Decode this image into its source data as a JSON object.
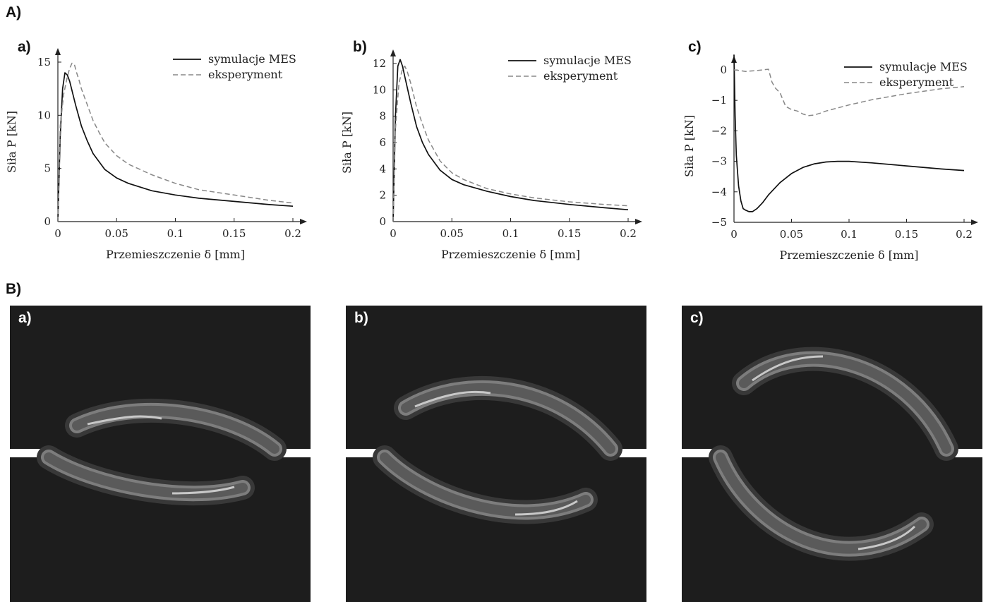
{
  "section_a_label": "A)",
  "section_b_label": "B)",
  "chart_data": [
    {
      "type": "line",
      "panel_label": "a)",
      "xlabel": "Przemieszczenie δ [mm]",
      "ylabel": "Siła P [kN]",
      "xlim": [
        0,
        0.2
      ],
      "ylim": [
        0,
        15
      ],
      "xticks": [
        0,
        0.05,
        0.1,
        0.15,
        0.2
      ],
      "xtick_labels": [
        "0",
        "0.05",
        "0.1",
        "0.15",
        "0.2"
      ],
      "yticks": [
        0,
        5,
        10,
        15
      ],
      "ytick_labels": [
        "0",
        "5",
        "10",
        "15"
      ],
      "legend_position": "top-right",
      "series": [
        {
          "name": "symulacje MES",
          "style": "solid",
          "color": "#111111",
          "x": [
            0,
            0.002,
            0.004,
            0.006,
            0.008,
            0.01,
            0.015,
            0.02,
            0.025,
            0.03,
            0.04,
            0.05,
            0.06,
            0.08,
            0.1,
            0.12,
            0.15,
            0.18,
            0.2
          ],
          "y": [
            0,
            8,
            12.5,
            14,
            13.8,
            13.2,
            11,
            9,
            7.6,
            6.4,
            4.9,
            4.1,
            3.6,
            2.9,
            2.5,
            2.2,
            1.9,
            1.6,
            1.45
          ]
        },
        {
          "name": "eksperyment",
          "style": "dashed",
          "color": "#888888",
          "x": [
            0,
            0.002,
            0.005,
            0.008,
            0.01,
            0.012,
            0.014,
            0.016,
            0.018,
            0.02,
            0.025,
            0.03,
            0.035,
            0.04,
            0.05,
            0.06,
            0.08,
            0.1,
            0.12,
            0.15,
            0.18,
            0.2
          ],
          "y": [
            0,
            9,
            12,
            13.6,
            14.4,
            14.9,
            14.8,
            14,
            13.3,
            12.5,
            11,
            9.5,
            8.4,
            7.4,
            6.2,
            5.4,
            4.4,
            3.6,
            3.0,
            2.5,
            2.0,
            1.75
          ]
        }
      ]
    },
    {
      "type": "line",
      "panel_label": "b)",
      "xlabel": "Przemieszczenie δ [mm]",
      "ylabel": "Siła P [kN]",
      "xlim": [
        0,
        0.2
      ],
      "ylim": [
        0,
        12
      ],
      "xticks": [
        0,
        0.05,
        0.1,
        0.15,
        0.2
      ],
      "xtick_labels": [
        "0",
        "0.05",
        "0.1",
        "0.15",
        "0.2"
      ],
      "yticks": [
        0,
        2,
        4,
        6,
        8,
        10,
        12
      ],
      "ytick_labels": [
        "0",
        "2",
        "4",
        "6",
        "8",
        "10",
        "12"
      ],
      "legend_position": "top-right",
      "series": [
        {
          "name": "symulacje MES",
          "style": "solid",
          "color": "#111111",
          "x": [
            0,
            0.002,
            0.004,
            0.006,
            0.008,
            0.01,
            0.015,
            0.02,
            0.025,
            0.03,
            0.04,
            0.05,
            0.06,
            0.08,
            0.1,
            0.12,
            0.15,
            0.18,
            0.2
          ],
          "y": [
            0,
            8,
            11.8,
            12.3,
            11.8,
            11,
            9,
            7.2,
            6,
            5.1,
            3.9,
            3.2,
            2.8,
            2.3,
            1.9,
            1.6,
            1.3,
            1.05,
            0.9
          ]
        },
        {
          "name": "eksperyment",
          "style": "dashed",
          "color": "#888888",
          "x": [
            0,
            0.002,
            0.005,
            0.008,
            0.01,
            0.012,
            0.015,
            0.02,
            0.025,
            0.03,
            0.04,
            0.05,
            0.06,
            0.08,
            0.1,
            0.12,
            0.15,
            0.18,
            0.2
          ],
          "y": [
            0,
            7,
            10.5,
            11.6,
            11.8,
            11.4,
            10.5,
            8.7,
            7.4,
            6.2,
            4.6,
            3.7,
            3.2,
            2.5,
            2.1,
            1.8,
            1.5,
            1.3,
            1.2
          ]
        }
      ]
    },
    {
      "type": "line",
      "panel_label": "c)",
      "xlabel": "Przemieszczenie δ [mm]",
      "ylabel": "Siła P [kN]",
      "xlim": [
        0,
        0.2
      ],
      "ylim": [
        -5,
        0
      ],
      "xticks": [
        0,
        0.05,
        0.1,
        0.15,
        0.2
      ],
      "xtick_labels": [
        "0",
        "0.05",
        "0.1",
        "0.15",
        "0.2"
      ],
      "yticks": [
        -5,
        -4,
        -3,
        -2,
        -1,
        0
      ],
      "ytick_labels": [
        "−5",
        "−4",
        "−3",
        "−2",
        "−1",
        "0"
      ],
      "legend_position": "top-right",
      "series": [
        {
          "name": "symulacje MES",
          "style": "solid",
          "color": "#111111",
          "x": [
            0,
            0.001,
            0.002,
            0.004,
            0.006,
            0.008,
            0.01,
            0.013,
            0.016,
            0.02,
            0.025,
            0.03,
            0.04,
            0.05,
            0.06,
            0.07,
            0.08,
            0.09,
            0.1,
            0.12,
            0.15,
            0.18,
            0.2
          ],
          "y": [
            0.5,
            -1.5,
            -2.8,
            -3.8,
            -4.3,
            -4.55,
            -4.6,
            -4.65,
            -4.65,
            -4.55,
            -4.35,
            -4.1,
            -3.7,
            -3.4,
            -3.2,
            -3.08,
            -3.02,
            -3.0,
            -3.0,
            -3.05,
            -3.15,
            -3.25,
            -3.3
          ]
        },
        {
          "name": "eksperyment",
          "style": "dashed",
          "color": "#888888",
          "x": [
            0,
            0.005,
            0.01,
            0.02,
            0.03,
            0.033,
            0.036,
            0.04,
            0.045,
            0.05,
            0.055,
            0.06,
            0.065,
            0.07,
            0.075,
            0.08,
            0.09,
            0.1,
            0.12,
            0.15,
            0.18,
            0.2
          ],
          "y": [
            0,
            -0.02,
            -0.05,
            -0.02,
            0.02,
            -0.4,
            -0.6,
            -0.75,
            -1.2,
            -1.3,
            -1.35,
            -1.45,
            -1.5,
            -1.48,
            -1.42,
            -1.35,
            -1.25,
            -1.15,
            -0.98,
            -0.78,
            -0.62,
            -0.55
          ]
        }
      ]
    }
  ],
  "simulation_panels": [
    {
      "label": "a)"
    },
    {
      "label": "b)"
    },
    {
      "label": "c)"
    }
  ]
}
